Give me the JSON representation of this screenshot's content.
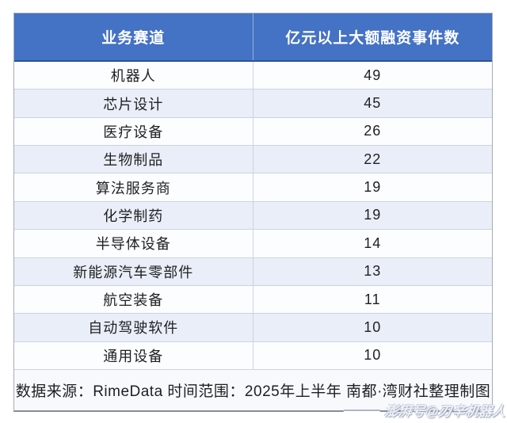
{
  "table": {
    "header": {
      "col1": "业务赛道",
      "col2": "亿元以上大额融资事件数"
    },
    "rows": [
      {
        "category": "机器人",
        "value": "49"
      },
      {
        "category": "芯片设计",
        "value": "45"
      },
      {
        "category": "医疗设备",
        "value": "26"
      },
      {
        "category": "生物制品",
        "value": "22"
      },
      {
        "category": "算法服务商",
        "value": "19"
      },
      {
        "category": "化学制药",
        "value": "19"
      },
      {
        "category": "半导体设备",
        "value": "14"
      },
      {
        "category": "新能源汽车零部件",
        "value": "13"
      },
      {
        "category": "航空装备",
        "value": "11"
      },
      {
        "category": "自动驾驶软件",
        "value": "10"
      },
      {
        "category": "通用设备",
        "value": "10"
      }
    ],
    "footer": "数据来源：RimeData 时间范围：2025年上半年 南都·湾财社整理制图"
  },
  "watermark": "澎湃号@刃辛机器人",
  "colors": {
    "header_bg": "#4472C4",
    "header_text": "#ffffff",
    "row_alt_bg": "#e9eef8",
    "row_bg": "#fcfdff",
    "separator": "#cbd4e4",
    "footer_bg": "#f7f9fd"
  },
  "chart_data": {
    "type": "table",
    "title": "",
    "columns": [
      "业务赛道",
      "亿元以上大额融资事件数"
    ],
    "categories": [
      "机器人",
      "芯片设计",
      "医疗设备",
      "生物制品",
      "算法服务商",
      "化学制药",
      "半导体设备",
      "新能源汽车零部件",
      "航空装备",
      "自动驾驶软件",
      "通用设备"
    ],
    "values": [
      49,
      45,
      26,
      22,
      19,
      19,
      14,
      13,
      11,
      10,
      10
    ],
    "source_note": "数据来源：RimeData 时间范围：2025年上半年 南都·湾财社整理制图"
  }
}
